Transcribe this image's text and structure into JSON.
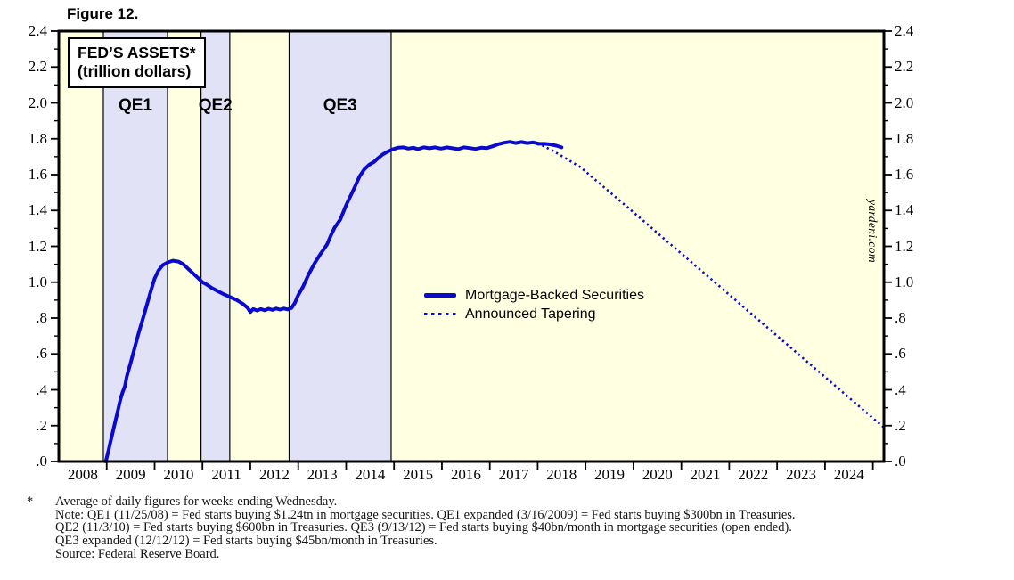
{
  "figure_label": "Figure 12.",
  "title_box": {
    "line1": "FED’S ASSETS*",
    "line2": "(trillion dollars)"
  },
  "watermark": "yardeni.com",
  "colors": {
    "plot_bg": "#ffffe1",
    "band_fill": "#e2e2f7",
    "band_edge": "#000000",
    "line_blue": "#0a0ace",
    "axis": "#000000"
  },
  "legend": {
    "items": [
      {
        "label": "Mortgage-Backed Securities",
        "style": "solid"
      },
      {
        "label": "Announced Tapering",
        "style": "dotted"
      }
    ]
  },
  "footnotes": {
    "star": "*",
    "lines": [
      "Average of daily figures for weeks ending Wednesday.",
      "Note: QE1 (11/25/08) = Fed starts buying $1.24tn in mortgage securities. QE1 expanded (3/16/2009) = Fed starts buying $300bn in Treasuries.",
      "QE2 (11/3/10) = Fed starts buying $600bn in Treasuries. QE3 (9/13/12) = Fed starts buying $40bn/month in mortgage securities (open ended).",
      "QE3 expanded (12/12/12) = Fed starts buying $45bn/month in Treasuries.",
      "Source: Federal Reserve Board."
    ]
  },
  "chart_data": {
    "type": "line",
    "title": "FED'S ASSETS* (trillion dollars)",
    "xlabel": "",
    "ylabel": "",
    "xlim": [
      2008,
      2025.23
    ],
    "ylim": [
      0,
      2.4
    ],
    "grid": false,
    "y_tick_minor": 0.1,
    "y_tick_major": 0.2,
    "y_tick_labels": [
      ".0",
      ".2",
      ".4",
      ".6",
      ".8",
      "1.0",
      "1.2",
      "1.4",
      "1.6",
      "1.8",
      "2.0",
      "2.2",
      "2.4"
    ],
    "x_year_labels": [
      2008,
      2009,
      2010,
      2011,
      2012,
      2013,
      2014,
      2015,
      2016,
      2017,
      2018,
      2019,
      2020,
      2021,
      2022,
      2023,
      2024
    ],
    "bands": [
      {
        "label": "QE1",
        "from": 2008.93,
        "to": 2010.27
      },
      {
        "label": "QE2",
        "from": 2010.97,
        "to": 2011.57
      },
      {
        "label": "QE3",
        "from": 2012.81,
        "to": 2014.94
      }
    ],
    "series": [
      {
        "name": "Mortgage-Backed Securities",
        "style": "solid",
        "points": [
          [
            2008.98,
            0.0
          ],
          [
            2009.02,
            0.04
          ],
          [
            2009.08,
            0.11
          ],
          [
            2009.15,
            0.19
          ],
          [
            2009.22,
            0.27
          ],
          [
            2009.29,
            0.35
          ],
          [
            2009.33,
            0.385
          ],
          [
            2009.38,
            0.42
          ],
          [
            2009.42,
            0.475
          ],
          [
            2009.5,
            0.55
          ],
          [
            2009.58,
            0.63
          ],
          [
            2009.67,
            0.72
          ],
          [
            2009.76,
            0.8
          ],
          [
            2009.84,
            0.875
          ],
          [
            2009.92,
            0.95
          ],
          [
            2010.0,
            1.02
          ],
          [
            2010.08,
            1.065
          ],
          [
            2010.17,
            1.095
          ],
          [
            2010.27,
            1.11
          ],
          [
            2010.38,
            1.12
          ],
          [
            2010.5,
            1.115
          ],
          [
            2010.6,
            1.1
          ],
          [
            2010.7,
            1.075
          ],
          [
            2010.8,
            1.05
          ],
          [
            2010.9,
            1.025
          ],
          [
            2011.0,
            1.0
          ],
          [
            2011.1,
            0.985
          ],
          [
            2011.2,
            0.967
          ],
          [
            2011.32,
            0.95
          ],
          [
            2011.45,
            0.932
          ],
          [
            2011.58,
            0.917
          ],
          [
            2011.72,
            0.9
          ],
          [
            2011.85,
            0.878
          ],
          [
            2011.94,
            0.858
          ],
          [
            2012.0,
            0.834
          ],
          [
            2012.06,
            0.85
          ],
          [
            2012.14,
            0.842
          ],
          [
            2012.22,
            0.85
          ],
          [
            2012.3,
            0.843
          ],
          [
            2012.38,
            0.852
          ],
          [
            2012.46,
            0.845
          ],
          [
            2012.54,
            0.853
          ],
          [
            2012.62,
            0.847
          ],
          [
            2012.7,
            0.853
          ],
          [
            2012.78,
            0.848
          ],
          [
            2012.86,
            0.856
          ],
          [
            2012.93,
            0.885
          ],
          [
            2013.0,
            0.928
          ],
          [
            2013.1,
            0.975
          ],
          [
            2013.22,
            1.045
          ],
          [
            2013.34,
            1.105
          ],
          [
            2013.47,
            1.16
          ],
          [
            2013.6,
            1.21
          ],
          [
            2013.68,
            1.26
          ],
          [
            2013.76,
            1.305
          ],
          [
            2013.88,
            1.35
          ],
          [
            2014.0,
            1.43
          ],
          [
            2014.08,
            1.475
          ],
          [
            2014.18,
            1.53
          ],
          [
            2014.28,
            1.59
          ],
          [
            2014.38,
            1.63
          ],
          [
            2014.48,
            1.655
          ],
          [
            2014.58,
            1.67
          ],
          [
            2014.66,
            1.69
          ],
          [
            2014.76,
            1.712
          ],
          [
            2014.86,
            1.727
          ],
          [
            2014.96,
            1.74
          ],
          [
            2015.08,
            1.75
          ],
          [
            2015.2,
            1.752
          ],
          [
            2015.3,
            1.745
          ],
          [
            2015.4,
            1.75
          ],
          [
            2015.5,
            1.742
          ],
          [
            2015.62,
            1.752
          ],
          [
            2015.74,
            1.747
          ],
          [
            2015.86,
            1.752
          ],
          [
            2015.98,
            1.745
          ],
          [
            2016.1,
            1.752
          ],
          [
            2016.22,
            1.747
          ],
          [
            2016.34,
            1.742
          ],
          [
            2016.46,
            1.752
          ],
          [
            2016.58,
            1.748
          ],
          [
            2016.7,
            1.743
          ],
          [
            2016.82,
            1.75
          ],
          [
            2016.94,
            1.748
          ],
          [
            2017.06,
            1.758
          ],
          [
            2017.18,
            1.77
          ],
          [
            2017.3,
            1.778
          ],
          [
            2017.42,
            1.783
          ],
          [
            2017.54,
            1.776
          ],
          [
            2017.66,
            1.782
          ],
          [
            2017.78,
            1.776
          ],
          [
            2017.9,
            1.78
          ],
          [
            2018.02,
            1.773
          ],
          [
            2018.14,
            1.772
          ],
          [
            2018.26,
            1.769
          ],
          [
            2018.38,
            1.762
          ],
          [
            2018.5,
            1.752
          ]
        ]
      },
      {
        "name": "Announced Tapering",
        "style": "dotted",
        "points": [
          [
            2017.88,
            1.778
          ],
          [
            2018.1,
            1.762
          ],
          [
            2018.35,
            1.728
          ],
          [
            2018.6,
            1.688
          ],
          [
            2018.9,
            1.64
          ],
          [
            2019.25,
            1.56
          ],
          [
            2019.75,
            1.447
          ],
          [
            2020.25,
            1.332
          ],
          [
            2020.75,
            1.217
          ],
          [
            2021.25,
            1.102
          ],
          [
            2021.75,
            0.988
          ],
          [
            2022.25,
            0.873
          ],
          [
            2022.75,
            0.758
          ],
          [
            2023.25,
            0.643
          ],
          [
            2023.75,
            0.528
          ],
          [
            2024.25,
            0.414
          ],
          [
            2024.75,
            0.299
          ],
          [
            2025.23,
            0.19
          ]
        ]
      }
    ]
  }
}
